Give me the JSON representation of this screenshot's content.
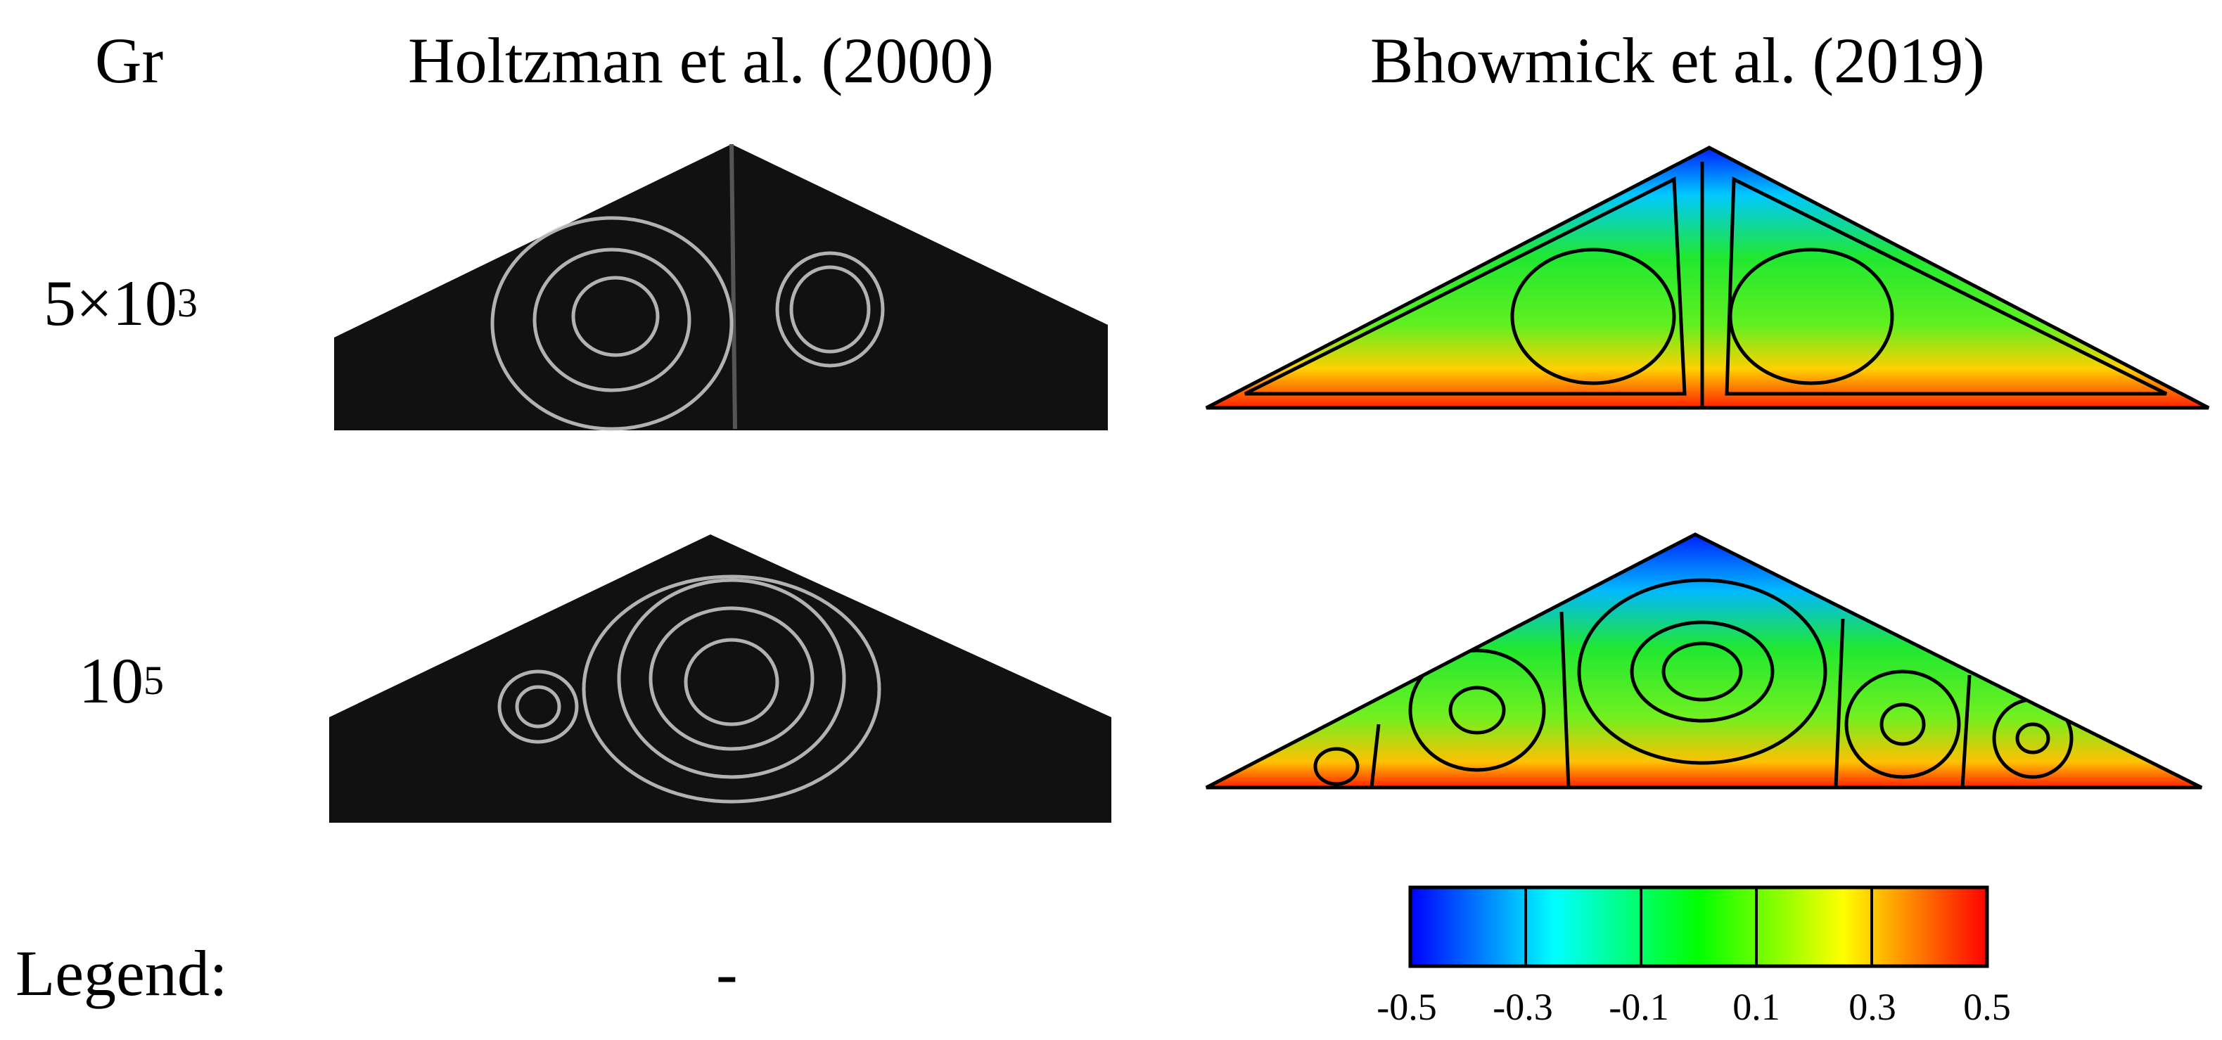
{
  "header": {
    "row_label": "Gr",
    "col1_title": "Holtzman et al. (2000)",
    "col2_title": "Bhowmick et al. (2019)"
  },
  "rows": [
    {
      "gr_base": "5×10",
      "gr_exp": "3"
    },
    {
      "gr_base": "10",
      "gr_exp": "5"
    }
  ],
  "legend": {
    "label": "Legend:",
    "col1_value": "-",
    "ticks": [
      "-0.5",
      "-0.3",
      "-0.1",
      "0.1",
      "0.3",
      "0.5"
    ],
    "colors": [
      "#0000ff",
      "#00ffff",
      "#00ff00",
      "#ffff00",
      "#ff0000"
    ]
  }
}
